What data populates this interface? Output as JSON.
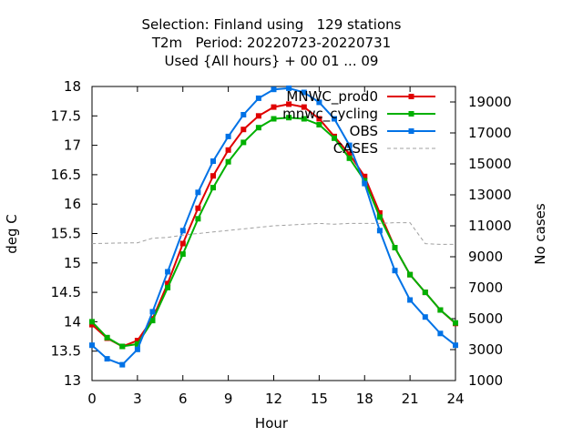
{
  "chart_data": {
    "type": "line",
    "title_lines": [
      "Selection: Finland using   129 stations",
      "T2m   Period: 20220723-20220731",
      "Used {All hours} + 00 01 ... 09"
    ],
    "xlabel": "Hour",
    "ylabel": "deg C",
    "y2label": "No cases",
    "xlim": [
      0,
      24
    ],
    "ylim": [
      13,
      18
    ],
    "y2lim": [
      1000,
      20000
    ],
    "xticks": [
      0,
      3,
      6,
      9,
      12,
      15,
      18,
      21,
      24
    ],
    "yticks": [
      13,
      13.5,
      14,
      14.5,
      15,
      15.5,
      16,
      16.5,
      17,
      17.5,
      18
    ],
    "y2ticks": [
      1000,
      3000,
      5000,
      7000,
      9000,
      11000,
      13000,
      15000,
      17000,
      19000
    ],
    "grid": false,
    "legend_position": "top-right",
    "x": [
      0,
      1,
      2,
      3,
      4,
      5,
      6,
      7,
      8,
      9,
      10,
      11,
      12,
      13,
      14,
      15,
      16,
      17,
      18,
      19,
      20,
      21,
      22,
      23,
      24
    ],
    "series": [
      {
        "name": "MNWC_prod0",
        "color": "#e00000",
        "axis": "y",
        "values": [
          13.95,
          13.72,
          13.58,
          13.68,
          14.05,
          14.65,
          15.33,
          15.93,
          16.48,
          16.92,
          17.27,
          17.5,
          17.65,
          17.7,
          17.65,
          17.45,
          17.15,
          16.85,
          16.47,
          15.85,
          15.26,
          14.8,
          14.5,
          14.2,
          13.97
        ]
      },
      {
        "name": "mnwc_cycling",
        "color": "#00b000",
        "axis": "y",
        "values": [
          14.0,
          13.73,
          13.58,
          13.62,
          14.02,
          14.58,
          15.15,
          15.75,
          16.28,
          16.72,
          17.05,
          17.3,
          17.45,
          17.47,
          17.45,
          17.35,
          17.12,
          16.78,
          16.4,
          15.78,
          15.26,
          14.8,
          14.5,
          14.2,
          13.98
        ]
      },
      {
        "name": "OBS",
        "color": "#0072e6",
        "axis": "y",
        "values": [
          13.6,
          13.37,
          13.27,
          13.53,
          14.17,
          14.85,
          15.55,
          16.2,
          16.73,
          17.15,
          17.52,
          17.8,
          17.95,
          17.97,
          17.9,
          17.73,
          17.45,
          17.0,
          16.35,
          15.55,
          14.87,
          14.37,
          14.08,
          13.8,
          13.6
        ]
      },
      {
        "name": "CASES",
        "color": "#a0a0a0",
        "axis": "y2",
        "values": [
          9850,
          9870,
          9890,
          9900,
          10200,
          10250,
          10400,
          10500,
          10600,
          10700,
          10800,
          10900,
          11000,
          11050,
          11100,
          11150,
          11100,
          11150,
          11150,
          11150,
          11200,
          11200,
          9850,
          9800,
          9800
        ]
      }
    ]
  }
}
